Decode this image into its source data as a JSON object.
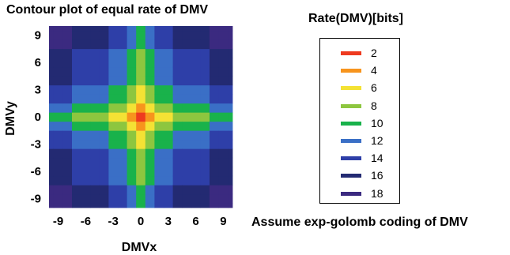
{
  "chart_data": {
    "type": "heatmap",
    "title": "Contour plot of equal rate of DMV",
    "xlabel": "DMVx",
    "ylabel": "DMVy",
    "x_ticks": [
      "-9",
      "-6",
      "-3",
      "0",
      "3",
      "6",
      "9"
    ],
    "y_ticks": [
      "9",
      "6",
      "3",
      "0",
      "-3",
      "-6",
      "-9"
    ],
    "xlim": [
      -10,
      10
    ],
    "ylim": [
      -10,
      10
    ],
    "z_function": "rate(DMVx) + rate(DMVy), exp-golomb code length per component",
    "legend_title": "Rate(DMV)[bits]",
    "legend": [
      {
        "label": "2",
        "value": 2,
        "color": "#ee3a1f"
      },
      {
        "label": "4",
        "value": 4,
        "color": "#f7941d"
      },
      {
        "label": "6",
        "value": 6,
        "color": "#f4e234"
      },
      {
        "label": "8",
        "value": 8,
        "color": "#8dc63f"
      },
      {
        "label": "10",
        "value": 10,
        "color": "#19b24b"
      },
      {
        "label": "12",
        "value": 12,
        "color": "#3a6fc6"
      },
      {
        "label": "14",
        "value": 14,
        "color": "#2e3fa8"
      },
      {
        "label": "16",
        "value": 16,
        "color": "#232a72"
      },
      {
        "label": "18",
        "value": 18,
        "color": "#3b2a80"
      }
    ],
    "legend_position": "right",
    "grid": false
  },
  "note": "Assume exp-golomb coding of DMV"
}
